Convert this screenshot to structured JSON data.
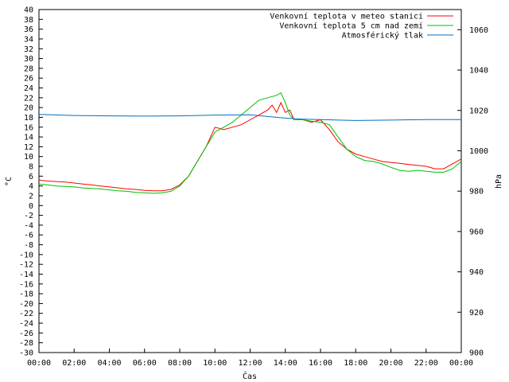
{
  "chart_data": {
    "type": "line",
    "xlabel": "Čas",
    "ylabel": "°C",
    "y2label": "hPa",
    "x_ticks": [
      "00:00",
      "02:00",
      "04:00",
      "06:00",
      "08:00",
      "10:00",
      "12:00",
      "14:00",
      "16:00",
      "18:00",
      "20:00",
      "22:00",
      "00:00"
    ],
    "xlim": [
      0,
      24
    ],
    "ylim": [
      -30,
      40
    ],
    "y_ticks": [
      40,
      38,
      36,
      34,
      32,
      30,
      28,
      26,
      24,
      22,
      20,
      18,
      16,
      14,
      12,
      10,
      8,
      6,
      4,
      2,
      0,
      -2,
      -4,
      -6,
      -8,
      -10,
      -12,
      -14,
      -16,
      -18,
      -20,
      -22,
      -24,
      -26,
      -28,
      -30
    ],
    "y2lim": [
      900,
      1070
    ],
    "y2_ticks": [
      1060,
      1040,
      1020,
      1000,
      980,
      960,
      940,
      920,
      900
    ],
    "legend_position": "top-right",
    "grid": false,
    "series": [
      {
        "name": "Venkovní teplota v meteo stanici",
        "color": "#ff0000",
        "axis": "left",
        "x": [
          0,
          0.5,
          1,
          1.5,
          2,
          2.5,
          3,
          3.5,
          4,
          4.5,
          5,
          5.5,
          6,
          6.5,
          7,
          7.5,
          8,
          8.5,
          9,
          9.5,
          10,
          10.5,
          11,
          11.5,
          12,
          12.5,
          13,
          13.25,
          13.5,
          13.75,
          14,
          14.25,
          14.5,
          15,
          15.5,
          16,
          16.5,
          17,
          17.5,
          18,
          18.5,
          19,
          19.5,
          20,
          20.5,
          21,
          21.5,
          22,
          22.5,
          23,
          23.5,
          24
        ],
        "y": [
          5.2,
          5.0,
          4.9,
          4.8,
          4.6,
          4.4,
          4.2,
          4.0,
          3.8,
          3.6,
          3.4,
          3.3,
          3.1,
          3.0,
          3.0,
          3.3,
          4.2,
          6.0,
          9.0,
          12.0,
          16.0,
          15.5,
          16.0,
          16.5,
          17.5,
          18.5,
          19.5,
          20.5,
          19.0,
          21.0,
          19.0,
          19.5,
          17.5,
          17.5,
          17.0,
          17.5,
          15.5,
          13.0,
          11.5,
          10.5,
          10.0,
          9.5,
          9.0,
          8.8,
          8.6,
          8.4,
          8.2,
          8.0,
          7.5,
          7.5,
          8.5,
          9.5
        ]
      },
      {
        "name": "Venkovní teplota 5 cm nad zemí",
        "color": "#00c000",
        "axis": "left",
        "x": [
          0,
          0.5,
          1,
          1.5,
          2,
          2.5,
          3,
          3.5,
          4,
          4.5,
          5,
          5.5,
          6,
          6.5,
          7,
          7.5,
          8,
          8.5,
          9,
          9.5,
          10,
          10.5,
          11,
          11.5,
          12,
          12.5,
          13,
          13.5,
          13.75,
          14,
          14.25,
          14.5,
          15,
          15.5,
          16,
          16.5,
          17,
          17.5,
          18,
          18.5,
          19,
          19.5,
          20,
          20.5,
          21,
          21.5,
          22,
          22.5,
          23,
          23.5,
          24
        ],
        "y": [
          4.4,
          4.2,
          4.0,
          3.9,
          3.8,
          3.6,
          3.5,
          3.4,
          3.2,
          3.0,
          2.9,
          2.7,
          2.6,
          2.5,
          2.6,
          2.9,
          4.0,
          6.0,
          9.0,
          12.0,
          15.0,
          16.0,
          17.0,
          18.5,
          20.0,
          21.5,
          22.0,
          22.5,
          23.0,
          21.0,
          18.5,
          17.5,
          17.5,
          17.2,
          17.0,
          16.5,
          14.0,
          11.5,
          10.0,
          9.2,
          9.0,
          8.5,
          7.8,
          7.2,
          7.0,
          7.2,
          7.0,
          6.8,
          6.8,
          7.5,
          9.0
        ]
      },
      {
        "name": "Atmosférický tlak",
        "color": "#0070c0",
        "axis": "right",
        "x": [
          0,
          2,
          4,
          6,
          8,
          10,
          12,
          13,
          14,
          15,
          16,
          17,
          18,
          20,
          22,
          24
        ],
        "y": [
          1018.0,
          1017.5,
          1017.3,
          1017.2,
          1017.3,
          1017.7,
          1017.8,
          1017.0,
          1016.2,
          1015.7,
          1015.5,
          1015.2,
          1015.0,
          1015.2,
          1015.5,
          1015.5
        ]
      }
    ]
  }
}
